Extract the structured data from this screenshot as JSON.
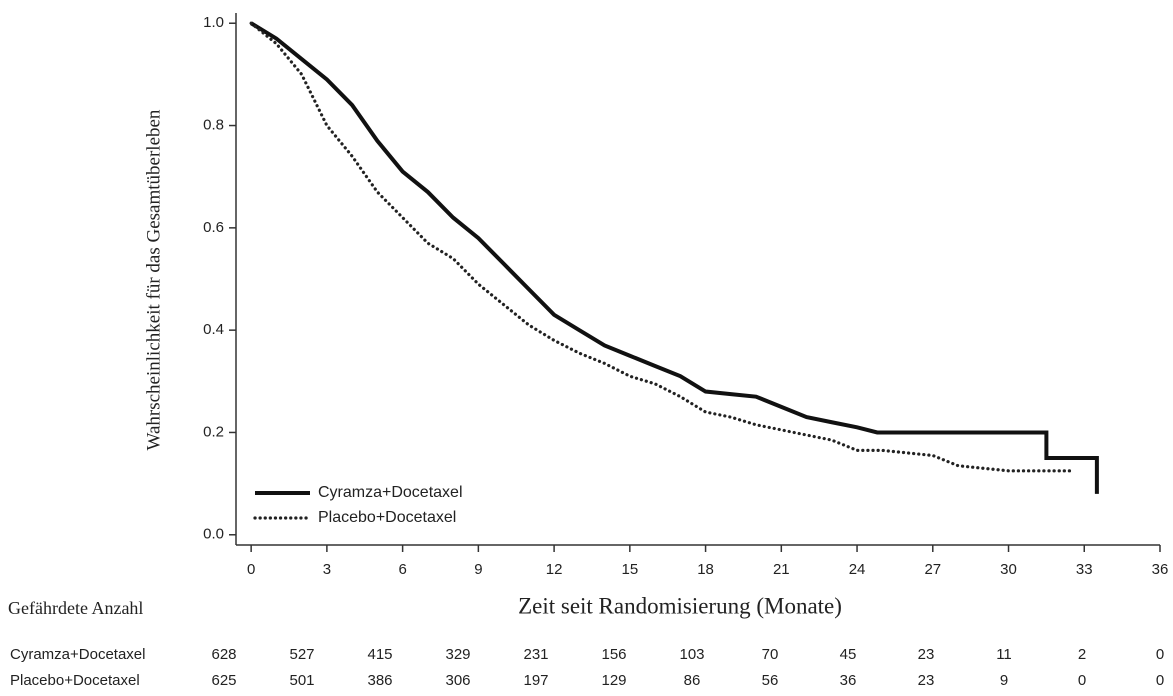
{
  "chart_data": {
    "type": "line",
    "ylabel": "Wahrscheinlichkeit für das Gesamtüberleben",
    "xlabel": "Zeit seit Randomisierung (Monate)",
    "xlim": [
      -0.6,
      36
    ],
    "ylim": [
      -0.02,
      1.02
    ],
    "xticks": [
      0,
      3,
      6,
      9,
      12,
      15,
      18,
      21,
      24,
      27,
      30,
      33,
      36
    ],
    "yticks": [
      {
        "value": 0,
        "label": "0.0"
      },
      0.2,
      0.4,
      0.6,
      0.8,
      {
        "value": 1,
        "label": "1.0"
      }
    ],
    "legend": "lower left",
    "series": [
      {
        "name": "Cyramza+Docetaxel",
        "color": "#111111",
        "style": "solid",
        "x": [
          0,
          1,
          2,
          3,
          4,
          5,
          6,
          7,
          8,
          9,
          10,
          11,
          12,
          13,
          14,
          15,
          16,
          17,
          18,
          19,
          20,
          21,
          22,
          23,
          24,
          24.8,
          31.5,
          31.5,
          33.5,
          33.5
        ],
        "values": [
          1.0,
          0.97,
          0.93,
          0.89,
          0.84,
          0.77,
          0.71,
          0.67,
          0.62,
          0.58,
          0.53,
          0.48,
          0.43,
          0.4,
          0.37,
          0.35,
          0.33,
          0.31,
          0.28,
          0.275,
          0.27,
          0.25,
          0.23,
          0.22,
          0.21,
          0.2,
          0.2,
          0.15,
          0.15,
          0.08
        ]
      },
      {
        "name": "Placebo+Docetaxel",
        "color": "#222222",
        "style": "dotted",
        "x": [
          0,
          1,
          2,
          3,
          4,
          5,
          6,
          7,
          8,
          9,
          10,
          11,
          12,
          13,
          14,
          15,
          16,
          17,
          18,
          19,
          20,
          21,
          22,
          23,
          24,
          25,
          26,
          27,
          28,
          29,
          30,
          32.5
        ],
        "values": [
          1.0,
          0.96,
          0.9,
          0.8,
          0.74,
          0.67,
          0.62,
          0.57,
          0.54,
          0.49,
          0.45,
          0.41,
          0.38,
          0.355,
          0.335,
          0.31,
          0.295,
          0.27,
          0.24,
          0.23,
          0.215,
          0.205,
          0.195,
          0.185,
          0.165,
          0.165,
          0.16,
          0.155,
          0.135,
          0.13,
          0.125,
          0.125
        ]
      }
    ],
    "risk_table": {
      "title": "Gefährdete Anzahl",
      "rows": [
        {
          "name": "Cyramza+Docetaxel",
          "values": [
            628,
            527,
            415,
            329,
            231,
            156,
            103,
            70,
            45,
            23,
            11,
            2,
            0
          ]
        },
        {
          "name": "Placebo+Docetaxel",
          "values": [
            625,
            501,
            386,
            306,
            197,
            129,
            86,
            56,
            36,
            23,
            9,
            0,
            0
          ]
        }
      ]
    }
  }
}
